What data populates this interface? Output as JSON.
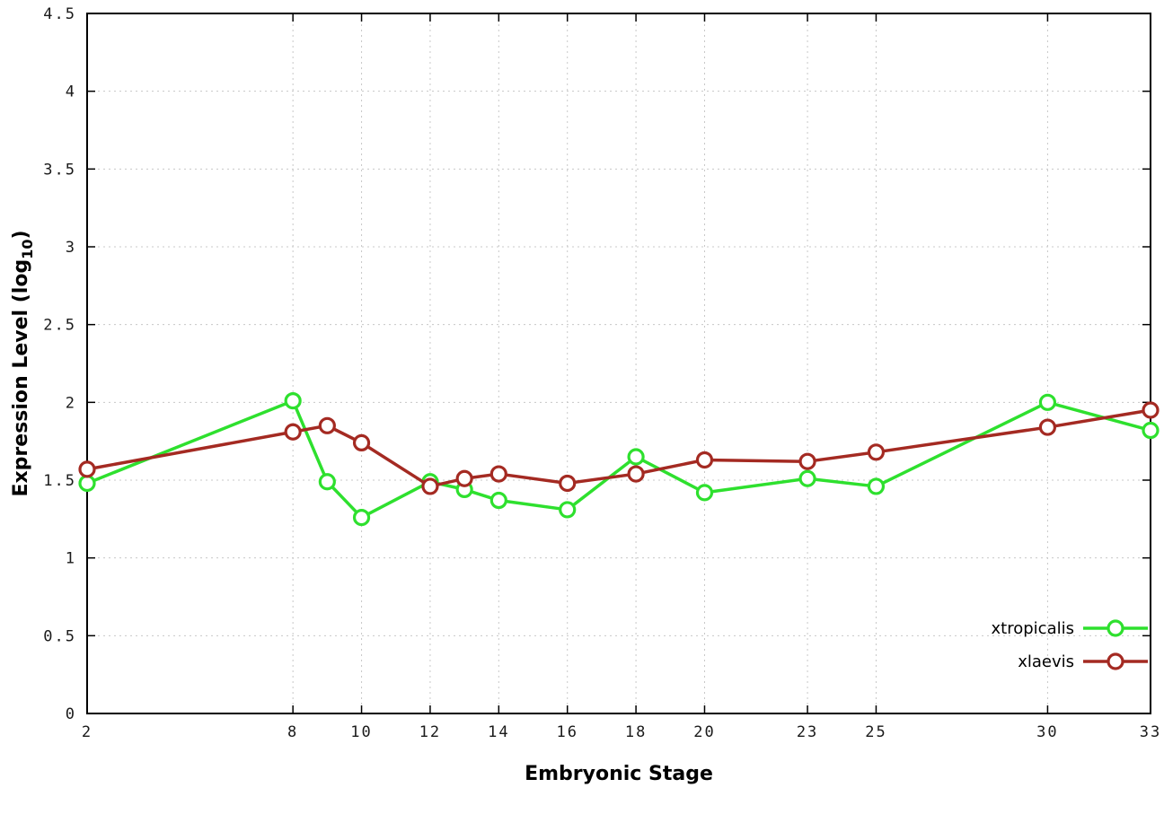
{
  "chart_data": {
    "type": "line",
    "title": "",
    "xlabel": "Embryonic Stage",
    "ylabel": "Expression Level (log10)",
    "ylabel_parts": {
      "main": "Expression Level (log",
      "sub": "10",
      "end": ")"
    },
    "xlim": [
      2,
      33
    ],
    "ylim": [
      0,
      4.5
    ],
    "ytick_step": 0.5,
    "xticks": [
      2,
      8,
      10,
      12,
      14,
      16,
      18,
      20,
      23,
      25,
      30,
      33
    ],
    "x": [
      2,
      8,
      9,
      10,
      12,
      13,
      14,
      16,
      18,
      20,
      23,
      25,
      30,
      33
    ],
    "series": [
      {
        "name": "xtropicalis",
        "color": "#2ee02e",
        "values": [
          1.48,
          2.01,
          1.49,
          1.26,
          1.49,
          1.44,
          1.37,
          1.31,
          1.65,
          1.42,
          1.51,
          1.46,
          2.0,
          1.82
        ]
      },
      {
        "name": "xlaevis",
        "color": "#a42a22",
        "values": [
          1.57,
          1.81,
          1.85,
          1.74,
          1.46,
          1.51,
          1.54,
          1.48,
          1.54,
          1.63,
          1.62,
          1.68,
          1.84,
          1.95
        ]
      }
    ],
    "legend": {
      "position": "bottom-right",
      "entries": [
        "xtropicalis",
        "xlaevis"
      ]
    },
    "grid": true,
    "background": "#ffffff",
    "axis_color": "#000000",
    "grid_color": "#c8c8c8"
  }
}
